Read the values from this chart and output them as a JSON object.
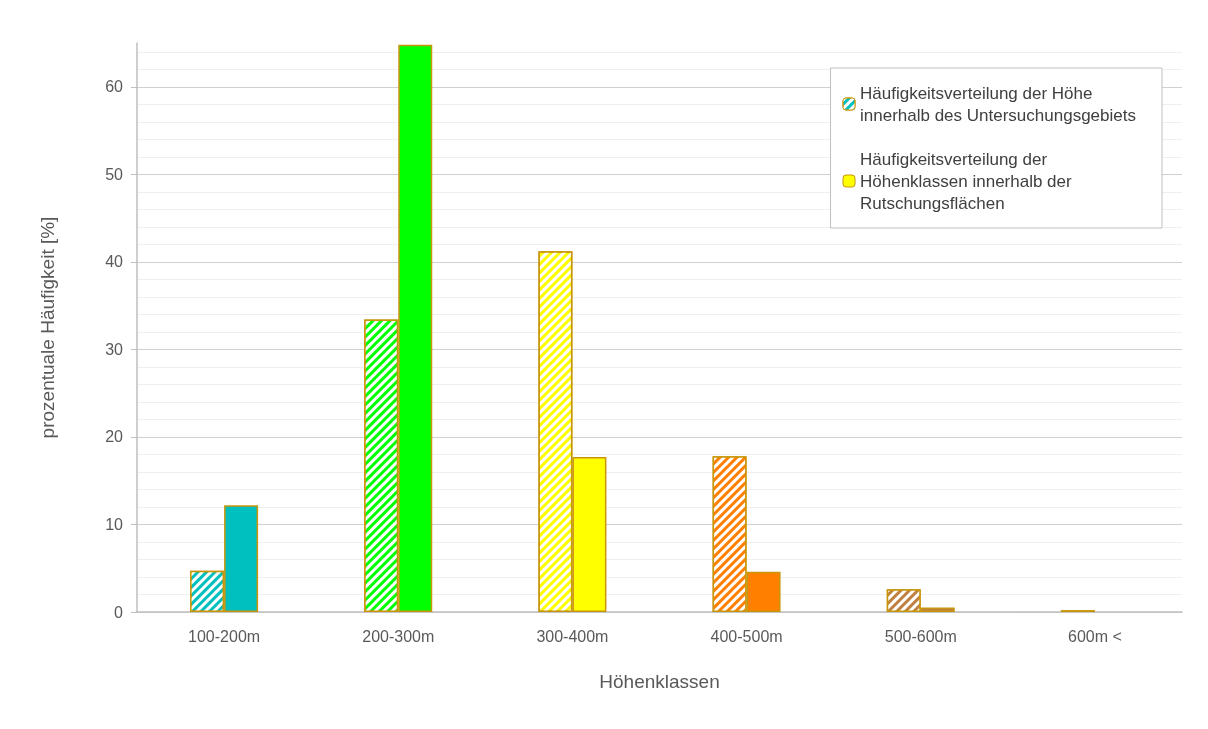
{
  "chart_data": {
    "type": "bar",
    "xlabel": "Höhenklassen",
    "ylabel": "prozentuale Häufigkeit [%]",
    "categories": [
      "100-200m",
      "200-300m",
      "300-400m",
      "400-500m",
      "500-600m",
      "600m <"
    ],
    "series": [
      {
        "name": "Häufigkeitsverteilung der Höhe innerhalb des Untersuchungsgebiets",
        "color": "#00bfbf",
        "colors": [
          "#00bfbf",
          "#00ff00",
          "#ffff00",
          "#ff8000",
          "#c08040",
          "#000000"
        ],
        "values": [
          4.7,
          33.4,
          41.2,
          17.8,
          2.6,
          0.2
        ]
      },
      {
        "name": "Häufigkeitsverteilung der Höhenklassen innerhalb der Rutschungsflächen",
        "color": "#ffff00",
        "colors": [
          "#00bfbf",
          "#00ff00",
          "#ffff00",
          "#ff8000",
          "#c08040",
          "#000000"
        ],
        "values": [
          12.2,
          64.8,
          17.7,
          4.6,
          0.5,
          null
        ]
      }
    ],
    "ylim": [
      0,
      65
    ],
    "yticks": [
      0,
      10,
      20,
      30,
      40,
      50,
      60
    ],
    "grid": "y",
    "legend": "top right"
  }
}
